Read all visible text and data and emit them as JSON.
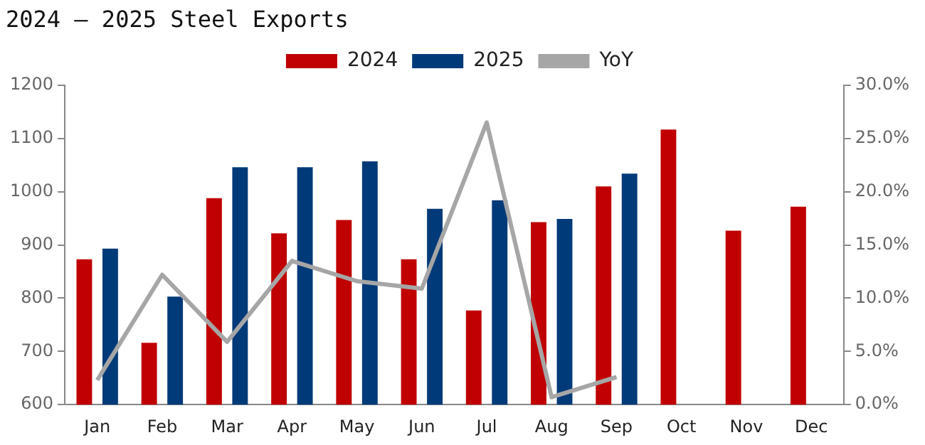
{
  "chart_data": {
    "type": "bar",
    "title": "2024 – 2025 Steel Exports",
    "categories": [
      "Jan",
      "Feb",
      "Mar",
      "Apr",
      "May",
      "Jun",
      "Jul",
      "Aug",
      "Sep",
      "Oct",
      "Nov",
      "Dec"
    ],
    "series": [
      {
        "name": "2024",
        "color": "#c00000",
        "values": [
          873,
          716,
          988,
          922,
          947,
          873,
          777,
          943,
          1010,
          1117,
          927,
          972
        ]
      },
      {
        "name": "2025",
        "color": "#003a78",
        "values": [
          893,
          803,
          1046,
          1046,
          1057,
          968,
          984,
          949,
          1034,
          null,
          null,
          null
        ]
      },
      {
        "name": "YoY",
        "type": "line",
        "axis": "y2",
        "color": "#a6a6a6",
        "values": [
          2.3,
          12.2,
          5.9,
          13.5,
          11.6,
          10.9,
          26.5,
          0.7,
          2.6,
          null,
          null,
          null
        ]
      }
    ],
    "ylim": [
      600,
      1200
    ],
    "yticks": [
      600,
      700,
      800,
      900,
      1000,
      1100,
      1200
    ],
    "y2lim": [
      0,
      30
    ],
    "y2ticks": [
      {
        "value": 0,
        "label": "0.0%"
      },
      {
        "value": 5,
        "label": "5.0%"
      },
      {
        "value": 10,
        "label": "10.0%"
      },
      {
        "value": 15,
        "label": "15.0%"
      },
      {
        "value": 20,
        "label": "20.0%"
      },
      {
        "value": 25,
        "label": "25.0%"
      },
      {
        "value": 30,
        "label": "30.0%"
      }
    ],
    "grid": false,
    "legend": "top",
    "marker": "none"
  }
}
